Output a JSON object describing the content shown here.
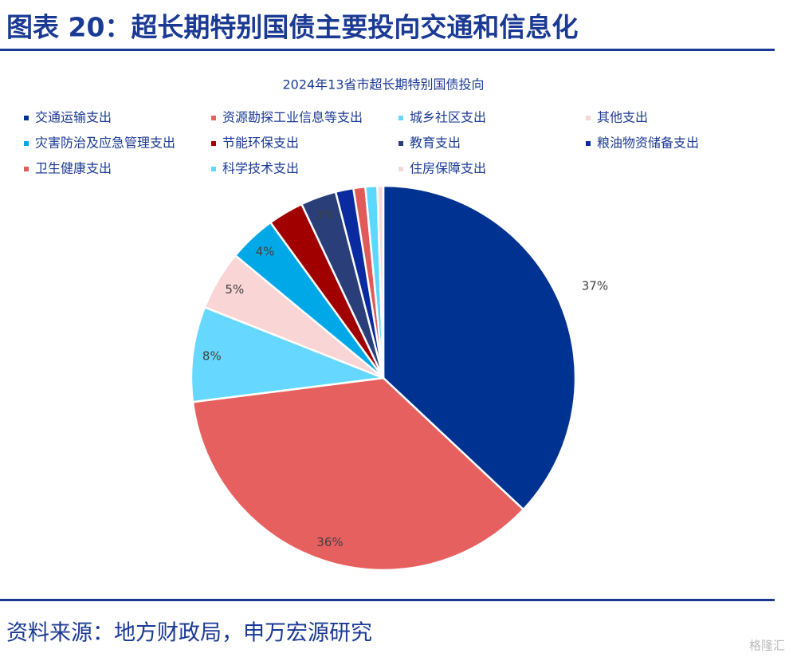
{
  "header": {
    "title": "图表 20：超长期特别国债主要投向交通和信息化"
  },
  "chart_data": {
    "type": "pie",
    "title": "2024年13省市超长期特别国债投向",
    "categories": [
      "交通运输支出",
      "资源勘探工业信息等支出",
      "城乡社区支出",
      "其他支出",
      "灾害防治及应急管理支出",
      "节能环保支出",
      "教育支出",
      "粮油物资储备支出",
      "卫生健康支出",
      "科学技术支出",
      "住房保障支出"
    ],
    "values": [
      37,
      36,
      8,
      5,
      4,
      3,
      3,
      1.5,
      1,
      1,
      0.5
    ],
    "value_labels": [
      "37%",
      "36%",
      "8%",
      "5%",
      "4%",
      null,
      "3%",
      null,
      null,
      null,
      null
    ],
    "colors": [
      "#003391",
      "#e66060",
      "#66d8ff",
      "#f9d5d5",
      "#00a8e8",
      "#a00000",
      "#2a3f7a",
      "#0a2aa0",
      "#e05a5a",
      "#5cd8ff",
      "#f5d8d8"
    ],
    "legend_columns": 4
  },
  "source": "资料来源：地方财政局，申万宏源研究",
  "watermark": "格隆汇"
}
